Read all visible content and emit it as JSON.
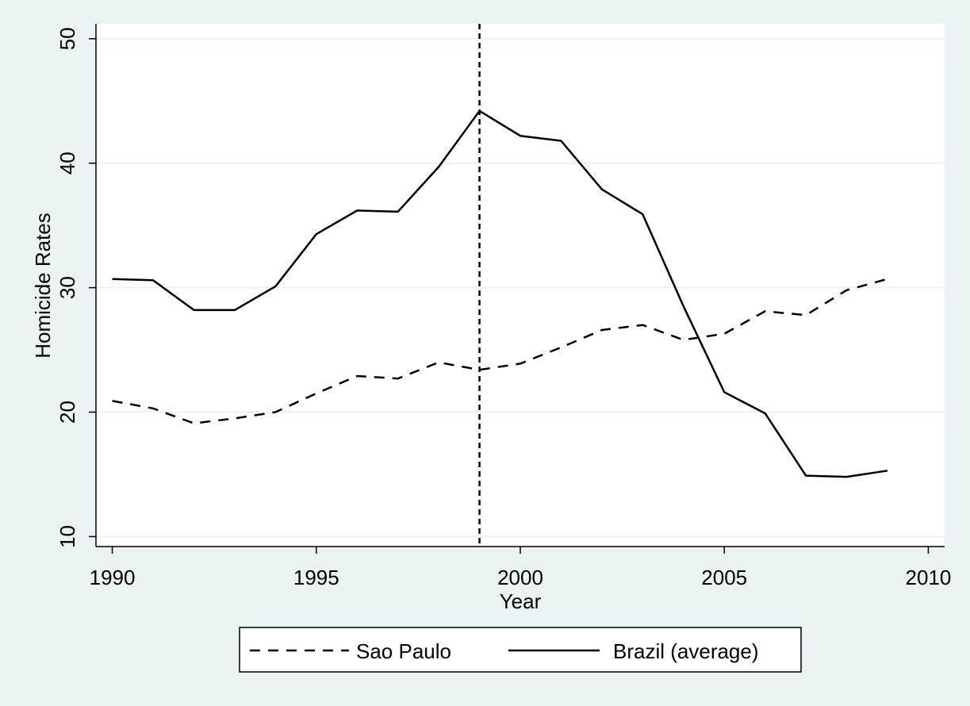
{
  "chart_data": {
    "type": "line",
    "title": "",
    "xlabel": "Year",
    "ylabel": "Homicide Rates",
    "xlim": [
      1989.6,
      2010.4
    ],
    "ylim": [
      9.2,
      51.2
    ],
    "x_ticks": [
      1990,
      1995,
      2000,
      2005,
      2010
    ],
    "y_ticks": [
      10,
      20,
      30,
      40,
      50
    ],
    "grid": "horizontal",
    "vertical_reference_line": {
      "x": 1999,
      "style": "dashed"
    },
    "legend_position": "bottom",
    "x": [
      1990,
      1991,
      1992,
      1993,
      1994,
      1995,
      1996,
      1997,
      1998,
      1999,
      2000,
      2001,
      2002,
      2003,
      2004,
      2005,
      2006,
      2007,
      2008,
      2009
    ],
    "series": [
      {
        "name": "Sao Paulo",
        "style": "dashed",
        "values": [
          20.9,
          20.3,
          19.1,
          19.5,
          20.0,
          21.5,
          22.9,
          22.7,
          24.0,
          23.4,
          23.9,
          25.2,
          26.6,
          27.0,
          25.8,
          26.3,
          28.1,
          27.8,
          29.8,
          30.7
        ]
      },
      {
        "name": "Brazil (average)",
        "style": "solid",
        "values": [
          30.7,
          30.6,
          28.2,
          28.2,
          30.1,
          34.3,
          36.2,
          36.1,
          39.7,
          44.2,
          42.2,
          41.8,
          37.9,
          35.9,
          28.5,
          21.6,
          19.9,
          14.9,
          14.8,
          15.3
        ]
      }
    ]
  },
  "colors": {
    "page_background": "#eaf2f3",
    "plot_background": "#ffffff",
    "gridline": "#eaf2f3",
    "line": "#000000"
  }
}
